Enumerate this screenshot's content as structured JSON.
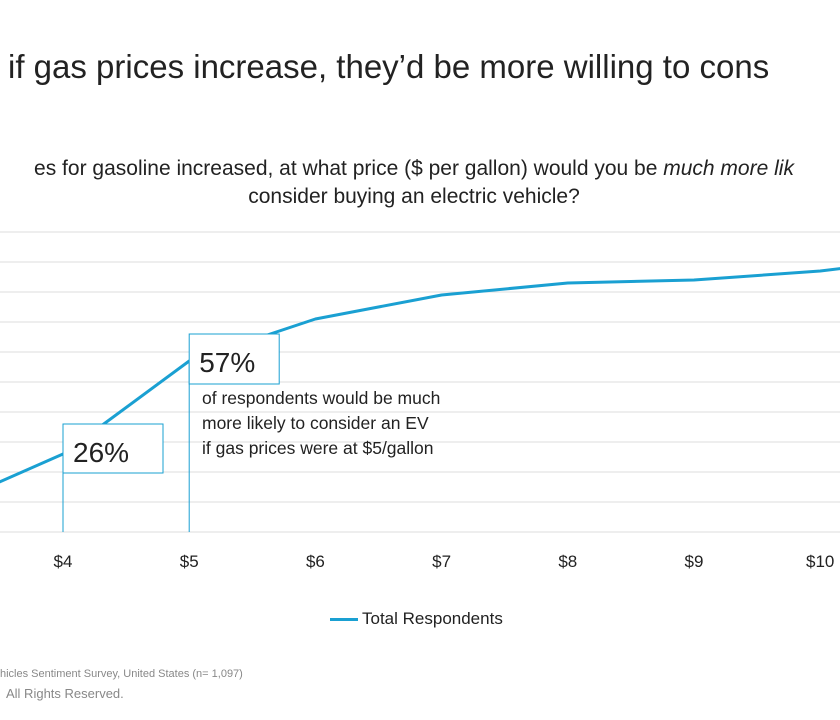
{
  "header": {
    "title": "if gas prices increase, they’d be more willing to cons",
    "subtitle_line1_pre": "es for gasoline increased, at what price ($ per gallon) would you be ",
    "subtitle_line1_em": "much more lik",
    "subtitle_line2": "consider buying an electric vehicle?"
  },
  "colors": {
    "series": "#1aa0d2",
    "grid": "#dddddd",
    "text": "#222222"
  },
  "annotations": {
    "a26": {
      "value": "26%"
    },
    "a57": {
      "value": "57%",
      "line1": "of respondents would be much",
      "line2": "more likely to consider an EV",
      "line3": "if gas prices were at $5/gallon"
    }
  },
  "chart_data": {
    "type": "line",
    "x_tick_labels": [
      "$4",
      "$5",
      "$6",
      "$7",
      "$8",
      "$9",
      "$10"
    ],
    "x": [
      3.46,
      4,
      5,
      6,
      7,
      8,
      9,
      10,
      10.2
    ],
    "series": [
      {
        "name": "Total Respondents",
        "values": [
          16,
          26,
          57,
          71,
          79,
          83,
          84,
          87,
          88
        ]
      }
    ],
    "ylim": [
      0,
      100
    ],
    "xlim": [
      3.54,
      10.2
    ],
    "grid": true,
    "legend_position": "bottom"
  },
  "footer": {
    "source": "hicles Sentiment Survey, United States (n= 1,097)",
    "rights": "All Rights Reserved."
  }
}
